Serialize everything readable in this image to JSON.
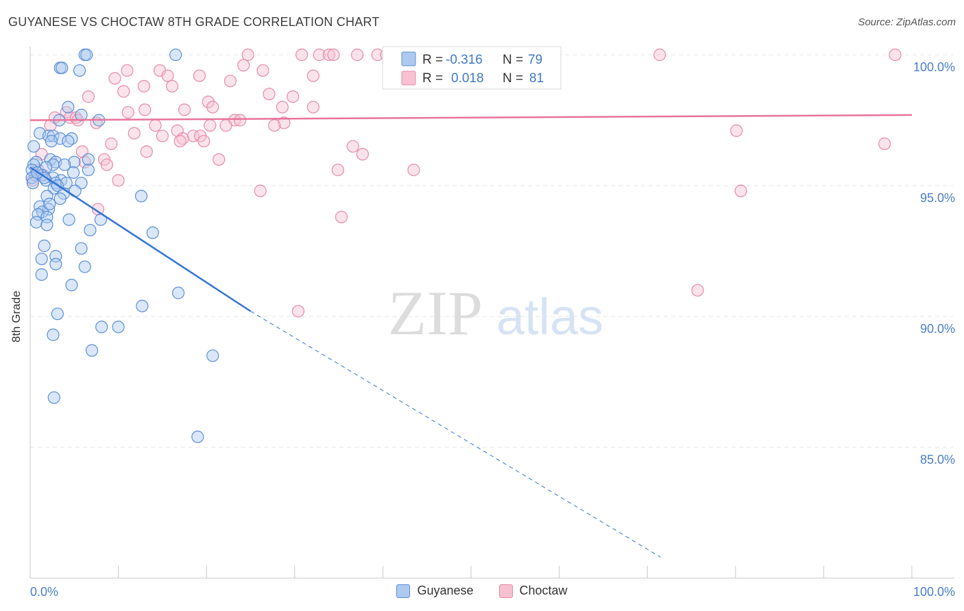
{
  "header": {
    "title": "GUYANESE VS CHOCTAW 8TH GRADE CORRELATION CHART",
    "source": "Source: ZipAtlas.com"
  },
  "legend": {
    "r_label": "R =",
    "n_label": "N =",
    "rows": [
      {
        "name": "Guyanese",
        "r": "-0.316",
        "n": "79"
      },
      {
        "name": "Choctaw",
        "r": "0.018",
        "n": "81"
      }
    ]
  },
  "watermark": {
    "zip": "ZIP",
    "atlas": "atlas"
  },
  "colors": {
    "guyanese_fill": "#adc9f0",
    "guyanese_stroke": "#5b8fd6",
    "guyanese_line": "#3273d4",
    "choctaw_fill": "#f7c1d2",
    "choctaw_stroke": "#e58aa8",
    "choctaw_line": "#e8739a",
    "tick_label": "#4a7ec9"
  },
  "chart_data": {
    "type": "scatter",
    "title": "GUYANESE VS CHOCTAW 8TH GRADE CORRELATION CHART",
    "xlabel": "",
    "ylabel": "8th Grade",
    "xlim": [
      0,
      100
    ],
    "ylim": [
      80.8,
      100.8
    ],
    "x_tick_labels": [
      "0.0%",
      "100.0%"
    ],
    "y_ticks": [
      100,
      95,
      90,
      85
    ],
    "y_tick_labels": [
      "100.0%",
      "95.0%",
      "90.0%",
      "85.0%"
    ],
    "grid": true,
    "legend_position": "top-center",
    "series": [
      {
        "name": "Guyanese",
        "r": -0.316,
        "n": 79,
        "trend": {
          "x_start": 0.0,
          "y_start": 95.7,
          "x_solid_end": 25.0,
          "y_solid_end": 90.2,
          "x_dash_end": 71.5,
          "y_dash_end": 80.8
        },
        "points": [
          [
            6.2,
            100.0
          ],
          [
            6.4,
            100.0
          ],
          [
            16.5,
            100.0
          ],
          [
            3.4,
            99.5
          ],
          [
            3.6,
            99.5
          ],
          [
            5.6,
            99.4
          ],
          [
            4.3,
            98.0
          ],
          [
            5.8,
            97.7
          ],
          [
            3.3,
            97.5
          ],
          [
            7.8,
            97.5
          ],
          [
            1.1,
            97.0
          ],
          [
            2.1,
            96.9
          ],
          [
            2.6,
            96.9
          ],
          [
            3.4,
            96.8
          ],
          [
            4.7,
            96.8
          ],
          [
            2.4,
            96.7
          ],
          [
            4.3,
            96.7
          ],
          [
            0.4,
            96.5
          ],
          [
            2.3,
            96.0
          ],
          [
            6.6,
            96.0
          ],
          [
            0.7,
            95.9
          ],
          [
            2.9,
            95.9
          ],
          [
            5.0,
            95.9
          ],
          [
            0.4,
            95.8
          ],
          [
            2.6,
            95.8
          ],
          [
            3.9,
            95.8
          ],
          [
            1.8,
            95.7
          ],
          [
            0.2,
            95.6
          ],
          [
            6.6,
            95.6
          ],
          [
            0.6,
            95.4
          ],
          [
            1.3,
            95.4
          ],
          [
            2.6,
            95.3
          ],
          [
            0.2,
            95.3
          ],
          [
            1.8,
            95.2
          ],
          [
            3.5,
            95.2
          ],
          [
            5.8,
            95.1
          ],
          [
            2.9,
            95.1
          ],
          [
            4.1,
            95.1
          ],
          [
            2.7,
            94.9
          ],
          [
            3.8,
            94.7
          ],
          [
            5.1,
            94.8
          ],
          [
            12.6,
            94.6
          ],
          [
            1.9,
            94.6
          ],
          [
            3.4,
            94.5
          ],
          [
            1.1,
            94.2
          ],
          [
            2.1,
            94.1
          ],
          [
            1.4,
            94.0
          ],
          [
            0.9,
            93.9
          ],
          [
            1.9,
            93.8
          ],
          [
            4.4,
            93.7
          ],
          [
            8.0,
            93.7
          ],
          [
            0.7,
            93.6
          ],
          [
            1.9,
            93.5
          ],
          [
            6.8,
            93.3
          ],
          [
            13.9,
            93.2
          ],
          [
            1.6,
            92.7
          ],
          [
            5.8,
            92.6
          ],
          [
            2.9,
            92.3
          ],
          [
            1.3,
            92.2
          ],
          [
            2.9,
            92.0
          ],
          [
            6.2,
            91.9
          ],
          [
            1.3,
            91.6
          ],
          [
            4.7,
            91.2
          ],
          [
            16.8,
            90.9
          ],
          [
            12.7,
            90.4
          ],
          [
            3.1,
            90.1
          ],
          [
            8.1,
            89.6
          ],
          [
            10.0,
            89.6
          ],
          [
            2.6,
            89.3
          ],
          [
            7.0,
            88.7
          ],
          [
            20.7,
            88.5
          ],
          [
            2.7,
            86.9
          ],
          [
            19.0,
            85.4
          ],
          [
            0.3,
            95.1
          ],
          [
            4.9,
            95.5
          ],
          [
            1.6,
            95.3
          ],
          [
            2.2,
            94.3
          ],
          [
            3.1,
            95.0
          ],
          [
            0.8,
            95.5
          ]
        ]
      },
      {
        "name": "Choctaw",
        "r": 0.018,
        "n": 81,
        "trend": {
          "x_start": 0.0,
          "y_start": 97.5,
          "x_end": 100.0,
          "y_end": 97.7
        },
        "points": [
          [
            24.7,
            100.0
          ],
          [
            30.8,
            100.0
          ],
          [
            32.8,
            100.0
          ],
          [
            33.9,
            100.0
          ],
          [
            34.4,
            100.0
          ],
          [
            37.1,
            100.0
          ],
          [
            39.4,
            100.0
          ],
          [
            40.4,
            100.0
          ],
          [
            42.7,
            100.0
          ],
          [
            44.8,
            100.0
          ],
          [
            47.6,
            100.0
          ],
          [
            71.4,
            100.0
          ],
          [
            98.1,
            100.0
          ],
          [
            24.2,
            99.6
          ],
          [
            11.0,
            99.4
          ],
          [
            14.7,
            99.4
          ],
          [
            26.4,
            99.4
          ],
          [
            19.2,
            99.2
          ],
          [
            32.1,
            99.2
          ],
          [
            9.6,
            99.1
          ],
          [
            15.6,
            99.2
          ],
          [
            22.7,
            99.0
          ],
          [
            12.9,
            98.8
          ],
          [
            16.1,
            98.8
          ],
          [
            10.6,
            98.6
          ],
          [
            27.1,
            98.5
          ],
          [
            29.8,
            98.4
          ],
          [
            6.6,
            98.4
          ],
          [
            20.2,
            98.2
          ],
          [
            32.1,
            98.0
          ],
          [
            20.7,
            98.0
          ],
          [
            13.0,
            97.9
          ],
          [
            17.5,
            97.9
          ],
          [
            28.6,
            98.0
          ],
          [
            11.1,
            97.8
          ],
          [
            4.1,
            97.8
          ],
          [
            2.8,
            97.6
          ],
          [
            4.5,
            97.6
          ],
          [
            5.2,
            97.6
          ],
          [
            5.4,
            97.5
          ],
          [
            7.5,
            97.4
          ],
          [
            23.2,
            97.5
          ],
          [
            23.8,
            97.5
          ],
          [
            28.8,
            97.4
          ],
          [
            27.7,
            97.3
          ],
          [
            2.3,
            97.3
          ],
          [
            14.2,
            97.3
          ],
          [
            20.4,
            97.3
          ],
          [
            22.2,
            97.3
          ],
          [
            16.7,
            97.1
          ],
          [
            80.1,
            97.1
          ],
          [
            11.8,
            97.0
          ],
          [
            18.5,
            96.9
          ],
          [
            19.3,
            96.9
          ],
          [
            15.0,
            96.9
          ],
          [
            17.3,
            96.8
          ],
          [
            17.0,
            96.7
          ],
          [
            19.7,
            96.7
          ],
          [
            96.9,
            96.6
          ],
          [
            9.2,
            96.6
          ],
          [
            36.6,
            96.5
          ],
          [
            13.2,
            96.3
          ],
          [
            5.9,
            96.3
          ],
          [
            1.3,
            96.2
          ],
          [
            37.7,
            96.2
          ],
          [
            8.4,
            96.0
          ],
          [
            21.4,
            96.0
          ],
          [
            6.2,
            95.9
          ],
          [
            8.7,
            95.8
          ],
          [
            0.9,
            95.6
          ],
          [
            1.5,
            95.4
          ],
          [
            34.9,
            95.6
          ],
          [
            43.5,
            95.6
          ],
          [
            10.0,
            95.2
          ],
          [
            26.1,
            94.8
          ],
          [
            80.6,
            94.8
          ],
          [
            7.7,
            94.1
          ],
          [
            35.3,
            93.8
          ],
          [
            75.7,
            91.0
          ],
          [
            30.4,
            90.2
          ],
          [
            0.3,
            95.2
          ]
        ]
      }
    ]
  }
}
